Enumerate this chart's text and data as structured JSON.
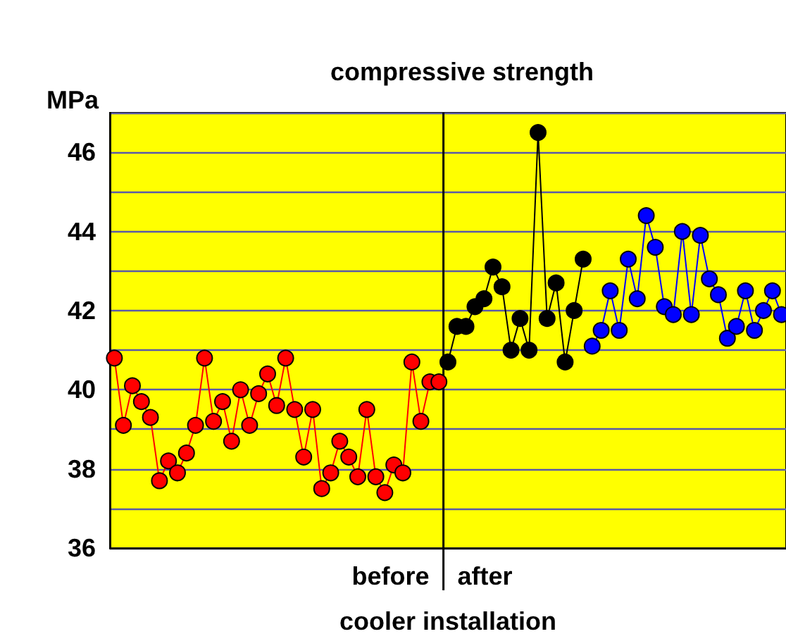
{
  "chart_data": {
    "type": "line",
    "title": "compressive strength",
    "ylabel": "MPa",
    "xlabel": "cooler installation",
    "annotations": [
      "before",
      "after"
    ],
    "categories": [
      null,
      null,
      null,
      null,
      null,
      null,
      null,
      null,
      null,
      null,
      null,
      null,
      null,
      null,
      null,
      null,
      null,
      null,
      null,
      null,
      null,
      null,
      null,
      null,
      null,
      null,
      null,
      null,
      null,
      null,
      null,
      null,
      null,
      null,
      null,
      null,
      null,
      null,
      null,
      null,
      null,
      null,
      null,
      null,
      null,
      null,
      null,
      null,
      null,
      null,
      null,
      null,
      null,
      null,
      null,
      null,
      null,
      null,
      null,
      null,
      null,
      null,
      null,
      null,
      null,
      null,
      null,
      null,
      null,
      null,
      null,
      null,
      null,
      null,
      null
    ],
    "series": [
      {
        "color": "#ff0000",
        "values": [
          40.8,
          39.1,
          40.1,
          39.7,
          39.3,
          37.7,
          38.2,
          37.9,
          38.4,
          39.1,
          40.8,
          39.2,
          39.7,
          38.7,
          40.0,
          39.1,
          39.9,
          40.4,
          39.6,
          40.8,
          39.5,
          38.3,
          39.5,
          37.5,
          37.9,
          38.7,
          38.3,
          37.8,
          39.5,
          37.8,
          37.4,
          38.1,
          37.9,
          40.7,
          39.2,
          40.2,
          40.2,
          null,
          null,
          null,
          null,
          null,
          null,
          null,
          null,
          null,
          null,
          null,
          null,
          null,
          null,
          null,
          null,
          null,
          null,
          null,
          null,
          null,
          null,
          null,
          null,
          null,
          null,
          null,
          null,
          null,
          null,
          null,
          null,
          null,
          null,
          null,
          null,
          null,
          null
        ]
      },
      {
        "color": "#000000",
        "values": [
          null,
          null,
          null,
          null,
          null,
          null,
          null,
          null,
          null,
          null,
          null,
          null,
          null,
          null,
          null,
          null,
          null,
          null,
          null,
          null,
          null,
          null,
          null,
          null,
          null,
          null,
          null,
          null,
          null,
          null,
          null,
          null,
          null,
          null,
          null,
          null,
          null,
          40.7,
          41.6,
          41.6,
          42.1,
          42.3,
          43.1,
          42.6,
          41.0,
          41.8,
          41.0,
          46.5,
          41.8,
          42.7,
          40.7,
          42.0,
          43.3,
          null,
          null,
          null,
          null,
          null,
          null,
          null,
          null,
          null,
          null,
          null,
          null,
          null,
          null,
          null,
          null,
          null,
          null,
          null,
          null,
          null,
          null
        ]
      },
      {
        "color": "#0000ff",
        "values": [
          null,
          null,
          null,
          null,
          null,
          null,
          null,
          null,
          null,
          null,
          null,
          null,
          null,
          null,
          null,
          null,
          null,
          null,
          null,
          null,
          null,
          null,
          null,
          null,
          null,
          null,
          null,
          null,
          null,
          null,
          null,
          null,
          null,
          null,
          null,
          null,
          null,
          null,
          null,
          null,
          null,
          null,
          null,
          null,
          null,
          null,
          null,
          null,
          null,
          null,
          null,
          null,
          null,
          41.1,
          41.5,
          42.5,
          41.5,
          43.3,
          42.3,
          44.4,
          43.6,
          42.1,
          41.9,
          44.0,
          41.9,
          43.9,
          42.8,
          42.4,
          41.3,
          41.6,
          42.5,
          41.5,
          42.0,
          42.5,
          41.9
        ]
      }
    ],
    "ylim": [
      36,
      47
    ],
    "yticks": [
      36,
      {
        "value": 37,
        "label": null
      },
      38,
      {
        "value": 39,
        "label": null
      },
      40,
      {
        "value": 41,
        "label": null
      },
      42,
      {
        "value": 43,
        "label": null
      },
      44,
      {
        "value": 45,
        "label": null
      },
      46,
      {
        "value": 47,
        "label": null
      }
    ],
    "grid": "y",
    "marker": "circle",
    "line_style": "solid"
  }
}
